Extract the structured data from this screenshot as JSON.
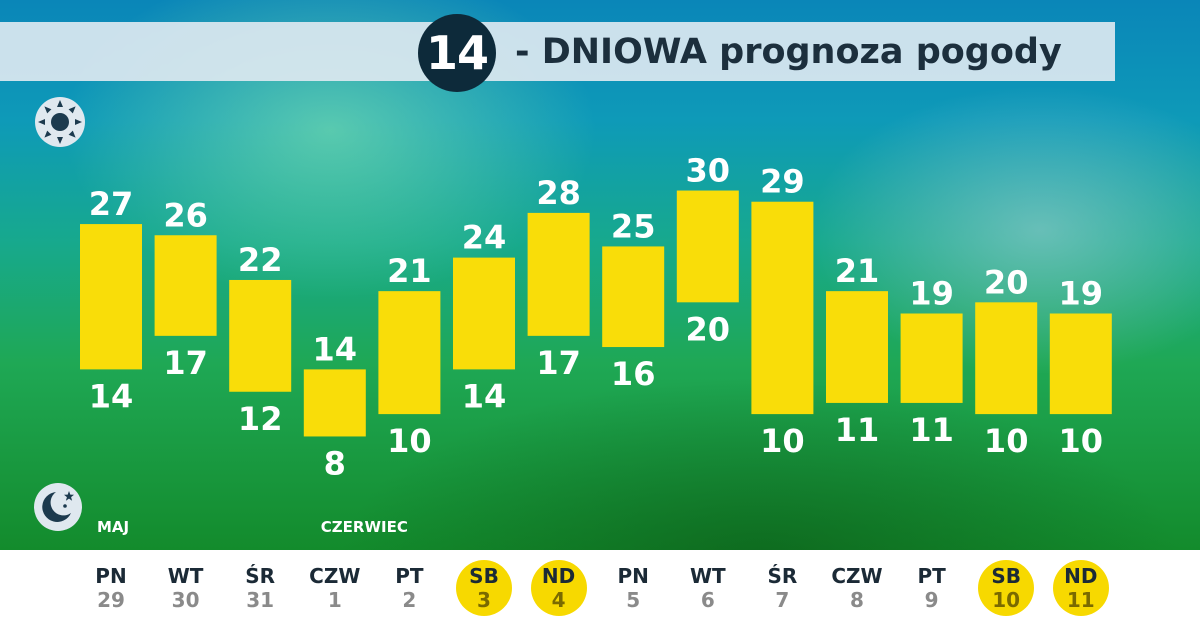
{
  "header": {
    "badge": "14",
    "title": "- DNIOWA prognoza pogody"
  },
  "icons": {
    "day": "sun-icon",
    "night": "moon-star-icon"
  },
  "colors": {
    "bar": "#f9dd09",
    "weekend_circle": "#f7d900",
    "badge": "#0d2a3a",
    "label": "#ffffff"
  },
  "months": [
    {
      "label": "MAJ",
      "start_index": 0
    },
    {
      "label": "CZERWIEC",
      "start_index": 3
    }
  ],
  "chart_data": {
    "type": "bar",
    "title": "",
    "xlabel": "",
    "ylabel": "",
    "ylim": [
      5,
      33
    ],
    "categories": [
      "PN",
      "WT",
      "ŚR",
      "CZW",
      "PT",
      "SB",
      "ND",
      "PN",
      "WT",
      "ŚR",
      "CZW",
      "PT",
      "SB",
      "ND"
    ],
    "dates": [
      "29",
      "30",
      "31",
      "1",
      "2",
      "3",
      "4",
      "5",
      "6",
      "7",
      "8",
      "9",
      "10",
      "11"
    ],
    "weekend": [
      false,
      false,
      false,
      false,
      false,
      true,
      true,
      false,
      false,
      false,
      false,
      false,
      true,
      true
    ],
    "series": [
      {
        "values": [
          27,
          26,
          22,
          14,
          21,
          24,
          28,
          25,
          30,
          29,
          21,
          19,
          20,
          19
        ]
      },
      {
        "values": [
          14,
          17,
          12,
          8,
          10,
          14,
          17,
          16,
          20,
          10,
          11,
          11,
          10,
          10
        ]
      }
    ]
  }
}
